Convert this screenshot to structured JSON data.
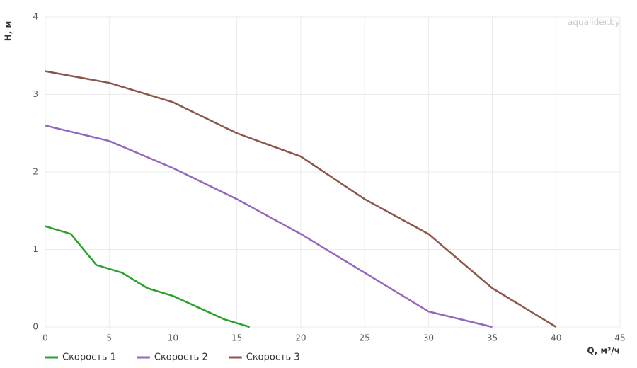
{
  "chart_data": {
    "type": "line",
    "watermark": "aqualider.by",
    "x_label": "Q, м³/ч",
    "y_label": "H, м",
    "xlim": [
      0,
      45
    ],
    "xticks": [
      0,
      5,
      10,
      15,
      20,
      25,
      30,
      35,
      40,
      45
    ],
    "ylim": [
      0,
      4
    ],
    "yticks": [
      0,
      1,
      2,
      3,
      4
    ],
    "grid": true,
    "legend": "bottom-left",
    "series": [
      {
        "name": "Скорость 1",
        "color": "#2ca02c",
        "x": [
          0,
          2,
          4,
          6,
          8,
          10,
          14,
          16
        ],
        "values": [
          1.3,
          1.2,
          0.8,
          0.7,
          0.5,
          0.4,
          0.1,
          0
        ]
      },
      {
        "name": "Скорость 2",
        "color": "#9467bd",
        "x": [
          0,
          5,
          10,
          15,
          20,
          25,
          30,
          35
        ],
        "values": [
          2.6,
          2.4,
          2.05,
          1.65,
          1.2,
          0.7,
          0.2,
          0
        ]
      },
      {
        "name": "Скорость 3",
        "color": "#8c564b",
        "x": [
          0,
          5,
          10,
          15,
          20,
          25,
          30,
          35,
          40
        ],
        "values": [
          3.3,
          3.15,
          2.9,
          2.5,
          2.2,
          1.65,
          1.2,
          0.5,
          0
        ]
      }
    ]
  }
}
